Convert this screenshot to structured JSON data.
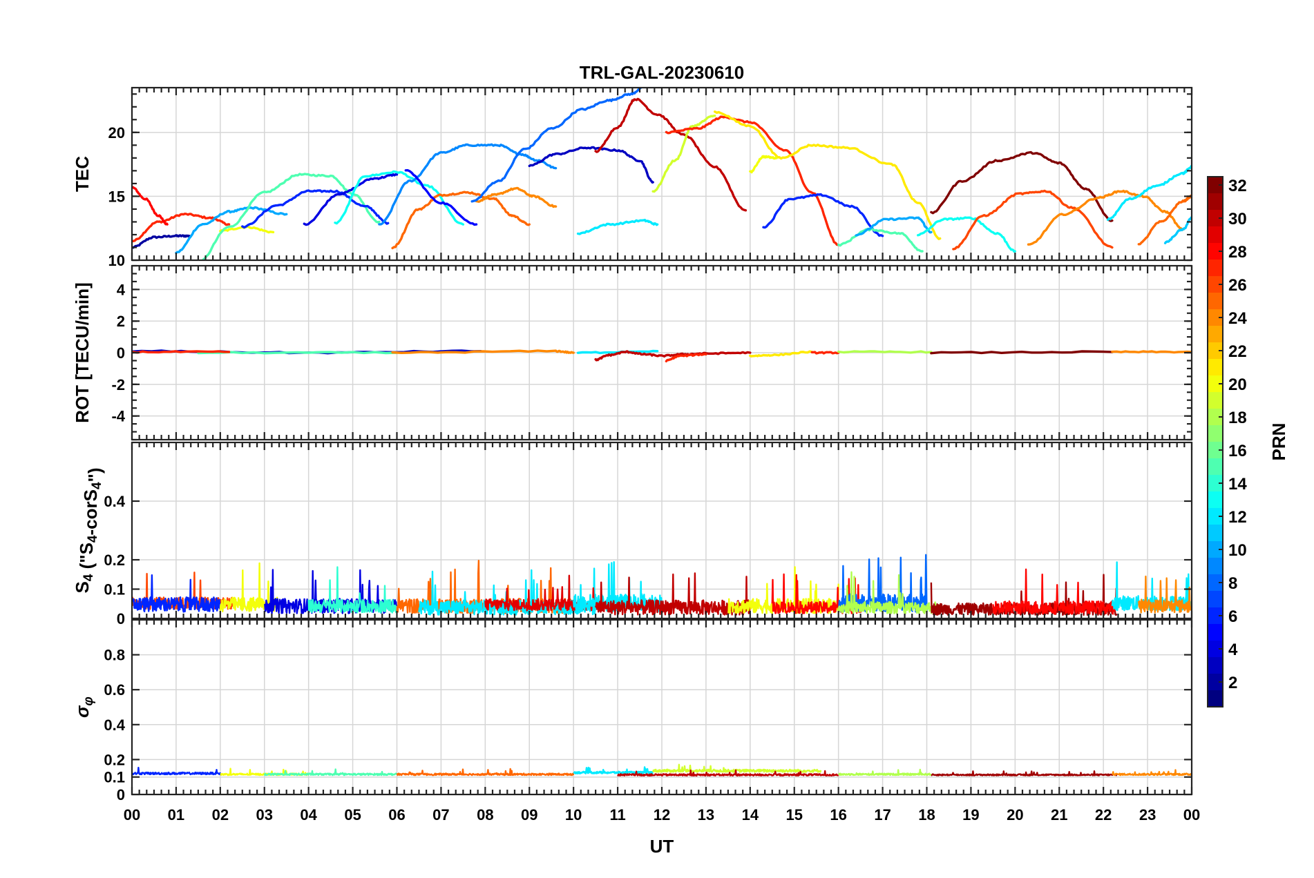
{
  "chart_data": {
    "type": "line",
    "title": "TRL-GAL-20230610",
    "xlabel": "UT",
    "x_range": [
      0,
      24
    ],
    "x_tick_labels": [
      "00",
      "01",
      "02",
      "03",
      "04",
      "05",
      "06",
      "07",
      "08",
      "09",
      "10",
      "11",
      "12",
      "13",
      "14",
      "15",
      "16",
      "17",
      "18",
      "19",
      "20",
      "21",
      "22",
      "23",
      "00"
    ],
    "colorbar": {
      "label": "PRN",
      "range": [
        1,
        32
      ],
      "tick_labels": [
        "2",
        "4",
        "6",
        "8",
        "10",
        "12",
        "14",
        "16",
        "18",
        "20",
        "22",
        "24",
        "26",
        "28",
        "30",
        "32"
      ],
      "colormap": "jet"
    },
    "panels": [
      {
        "id": "tec",
        "ylabel": "TEC",
        "ylim": [
          10,
          23.5
        ],
        "y_ticks": [
          10,
          15,
          20
        ],
        "y_tick_labels": [
          "10",
          "15",
          "20"
        ],
        "series": [
          {
            "prn": 2,
            "x": [
              0.0,
              0.5,
              1.0,
              1.3
            ],
            "y": [
              11.0,
              11.8,
              11.9,
              11.9
            ]
          },
          {
            "prn": 27,
            "x": [
              0.0,
              0.6,
              1.2,
              1.8,
              2.2
            ],
            "y": [
              11.5,
              13.0,
              13.6,
              13.3,
              12.8
            ]
          },
          {
            "prn": 28,
            "x": [
              0.0,
              0.3,
              0.6,
              0.8
            ],
            "y": [
              15.7,
              14.8,
              13.5,
              12.8
            ]
          },
          {
            "prn": 10,
            "x": [
              1.0,
              1.6,
              2.2,
              2.7,
              3.5
            ],
            "y": [
              10.6,
              12.8,
              13.8,
              14.1,
              13.6
            ]
          },
          {
            "prn": 20,
            "x": [
              2.0,
              2.6,
              3.2
            ],
            "y": [
              12.3,
              12.6,
              12.2
            ]
          },
          {
            "prn": 15,
            "x": [
              1.5,
              2.2,
              3.0,
              3.8,
              4.5,
              5.0,
              5.6
            ],
            "y": [
              9.8,
              12.6,
              15.3,
              16.7,
              16.6,
              15.2,
              13.0
            ]
          },
          {
            "prn": 6,
            "x": [
              2.5,
              3.3,
              4.0,
              4.6,
              5.3,
              5.8
            ],
            "y": [
              12.6,
              14.3,
              15.4,
              15.4,
              14.2,
              12.9
            ]
          },
          {
            "prn": 4,
            "x": [
              3.9,
              4.7,
              5.5,
              6.0
            ],
            "y": [
              12.8,
              15.2,
              16.4,
              16.7
            ]
          },
          {
            "prn": 13,
            "x": [
              4.6,
              5.3,
              6.0,
              6.7,
              7.5
            ],
            "y": [
              12.9,
              16.6,
              16.9,
              15.8,
              12.8
            ]
          },
          {
            "prn": 9,
            "x": [
              5.6,
              6.3,
              7.0,
              7.6,
              8.3,
              8.8,
              9.2,
              9.6
            ],
            "y": [
              12.8,
              16.2,
              18.4,
              19.0,
              19.0,
              18.3,
              17.8,
              17.2
            ]
          },
          {
            "prn": 25,
            "x": [
              5.9,
              6.5,
              7.0,
              7.6,
              8.2,
              8.6,
              9.0
            ],
            "y": [
              11.0,
              14.0,
              15.1,
              15.3,
              14.8,
              13.5,
              12.8
            ]
          },
          {
            "prn": 5,
            "x": [
              6.2,
              7.0,
              7.8
            ],
            "y": [
              17.0,
              14.5,
              12.8
            ]
          },
          {
            "prn": 24,
            "x": [
              7.8,
              8.2,
              8.7,
              9.1,
              9.6
            ],
            "y": [
              14.6,
              15.1,
              15.6,
              15.0,
              14.2
            ]
          },
          {
            "prn": 8,
            "x": [
              7.7,
              8.3,
              8.9,
              9.5,
              10.2,
              10.8,
              11.3,
              11.6
            ],
            "y": [
              14.6,
              16.2,
              18.7,
              20.3,
              21.8,
              22.5,
              23.0,
              23.6
            ]
          },
          {
            "prn": 3,
            "x": [
              9.0,
              9.6,
              10.3,
              11.0,
              11.5,
              11.8
            ],
            "y": [
              17.4,
              18.3,
              18.8,
              18.6,
              17.8,
              16.1
            ]
          },
          {
            "prn": 12,
            "x": [
              10.1,
              10.8,
              11.6,
              11.9
            ],
            "y": [
              12.1,
              12.8,
              13.1,
              12.8
            ]
          },
          {
            "prn": 30,
            "x": [
              10.5,
              11.0,
              11.4,
              11.9,
              12.5,
              13.2,
              13.9
            ],
            "y": [
              18.5,
              20.4,
              22.6,
              21.4,
              19.8,
              17.3,
              13.9
            ]
          },
          {
            "prn": 19,
            "x": [
              11.8,
              12.3,
              12.7,
              13.2
            ],
            "y": [
              15.4,
              17.8,
              20.5,
              21.3
            ]
          },
          {
            "prn": 27,
            "x": [
              12.1,
              12.8,
              13.4,
              14.0,
              14.8,
              15.4,
              16.0
            ],
            "y": [
              20.0,
              20.3,
              21.2,
              20.8,
              18.6,
              15.3,
              11.2
            ]
          },
          {
            "prn": 21,
            "x": [
              13.2,
              14.0,
              14.7,
              15.4,
              16.2,
              17.2,
              17.8,
              18.3
            ],
            "y": [
              21.6,
              20.5,
              18.0,
              19.0,
              18.8,
              17.5,
              14.5,
              11.7
            ]
          },
          {
            "prn": 20,
            "x": [
              14.0,
              14.3,
              14.6
            ],
            "y": [
              16.9,
              18.1,
              18.0
            ]
          },
          {
            "prn": 6,
            "x": [
              14.3,
              14.9,
              15.6,
              16.3,
              17.0
            ],
            "y": [
              12.6,
              14.8,
              15.1,
              14.2,
              11.9
            ]
          },
          {
            "prn": 15,
            "x": [
              16.0,
              16.7,
              17.4,
              17.9
            ],
            "y": [
              11.2,
              12.4,
              12.1,
              10.7
            ]
          },
          {
            "prn": 10,
            "x": [
              16.4,
              17.1,
              17.8,
              18.1
            ],
            "y": [
              12.0,
              13.2,
              13.3,
              12.2
            ]
          },
          {
            "prn": 13,
            "x": [
              17.8,
              18.4,
              19.0,
              19.6,
              20.0
            ],
            "y": [
              12.0,
              13.2,
              13.3,
              12.1,
              10.7
            ]
          },
          {
            "prn": 32,
            "x": [
              18.1,
              18.8,
              19.6,
              20.4,
              21.0,
              21.6,
              22.2
            ],
            "y": [
              13.7,
              16.2,
              17.8,
              18.4,
              17.6,
              15.6,
              13.1
            ]
          },
          {
            "prn": 26,
            "x": [
              18.6,
              19.3,
              20.1,
              20.7,
              21.3,
              22.2
            ],
            "y": [
              10.9,
              13.5,
              15.2,
              15.4,
              14.1,
              11.0
            ]
          },
          {
            "prn": 24,
            "x": [
              20.3,
              21.1,
              21.9,
              22.4,
              22.9,
              23.4,
              23.8
            ],
            "y": [
              11.2,
              13.6,
              14.9,
              15.4,
              15.0,
              13.8,
              12.4
            ]
          },
          {
            "prn": 12,
            "x": [
              22.1,
              22.6,
              23.2,
              23.8,
              24.0
            ],
            "y": [
              13.2,
              14.8,
              15.8,
              16.8,
              17.3
            ]
          },
          {
            "prn": 25,
            "x": [
              22.8,
              23.3,
              23.8,
              24.0
            ],
            "y": [
              11.3,
              13.0,
              14.6,
              15.0
            ]
          },
          {
            "prn": 11,
            "x": [
              23.4,
              23.8,
              24.0
            ],
            "y": [
              11.4,
              12.4,
              13.3
            ]
          }
        ]
      },
      {
        "id": "rot",
        "ylabel": "ROT [TECU/min]",
        "ylim": [
          -5.5,
          5.5
        ],
        "y_ticks": [
          -4,
          -2,
          0,
          2,
          4
        ],
        "y_tick_labels": [
          "-4",
          "-2",
          "0",
          "2",
          "4"
        ],
        "series": [
          {
            "prn": 3,
            "x": [
              0.0,
              4.0,
              7.9
            ],
            "y": [
              0.1,
              0.0,
              0.1
            ]
          },
          {
            "prn": 15,
            "x": [
              1.5,
              6.0
            ],
            "y": [
              0.0,
              0.0
            ]
          },
          {
            "prn": 27,
            "x": [
              0.0,
              2.2
            ],
            "y": [
              0.05,
              0.05
            ]
          },
          {
            "prn": 24,
            "x": [
              5.9,
              9.6,
              10.0
            ],
            "y": [
              0.0,
              0.1,
              0.0
            ]
          },
          {
            "prn": 12,
            "x": [
              10.1,
              11.9
            ],
            "y": [
              0.0,
              0.1
            ]
          },
          {
            "prn": 30,
            "x": [
              10.5,
              10.8,
              11.2,
              11.6,
              12.0,
              12.5,
              13.0,
              14.0
            ],
            "y": [
              -0.45,
              -0.15,
              0.05,
              -0.1,
              -0.2,
              -0.1,
              -0.05,
              0.0
            ]
          },
          {
            "prn": 27,
            "x": [
              12.1,
              12.4,
              13.0
            ],
            "y": [
              -0.5,
              -0.2,
              -0.1
            ]
          },
          {
            "prn": 21,
            "x": [
              14.0,
              14.5,
              15.4
            ],
            "y": [
              -0.2,
              -0.15,
              0.05
            ]
          },
          {
            "prn": 27,
            "x": [
              15.4,
              16.0
            ],
            "y": [
              0.0,
              0.0
            ]
          },
          {
            "prn": 18,
            "x": [
              16.0,
              18.1
            ],
            "y": [
              0.05,
              0.05
            ]
          },
          {
            "prn": 32,
            "x": [
              18.1,
              22.2
            ],
            "y": [
              0.0,
              0.05
            ]
          },
          {
            "prn": 24,
            "x": [
              22.2,
              24.0
            ],
            "y": [
              0.05,
              0.05
            ]
          }
        ]
      },
      {
        "id": "s4",
        "ylabel": "S4 (\"S4-corS4\")",
        "ylabel_parts": {
          "s1": "S",
          "sub1": "4",
          "mid": " (\"S",
          "sub2": "4",
          "s3": "-corS",
          "sub3": "4",
          "end": "\")"
        },
        "ylim": [
          0,
          0.6
        ],
        "y_ticks": [
          0,
          0.1,
          0.2,
          0.4
        ],
        "y_tick_labels": [
          "0",
          "0.1",
          "0.2",
          "0.4"
        ],
        "noise_bands": [
          {
            "prn": 26,
            "x0": 0.0,
            "x1": 2.3,
            "base": 0.05,
            "amp": 0.04
          },
          {
            "prn": 6,
            "x0": 0.0,
            "x1": 2.0,
            "base": 0.045,
            "amp": 0.05
          },
          {
            "prn": 20,
            "x0": 2.0,
            "x1": 3.3,
            "base": 0.045,
            "amp": 0.05
          },
          {
            "prn": 4,
            "x0": 3.0,
            "x1": 6.0,
            "base": 0.04,
            "amp": 0.05
          },
          {
            "prn": 14,
            "x0": 4.0,
            "x1": 6.0,
            "base": 0.04,
            "amp": 0.045
          },
          {
            "prn": 25,
            "x0": 6.0,
            "x1": 10.0,
            "base": 0.04,
            "amp": 0.05
          },
          {
            "prn": 12,
            "x0": 6.5,
            "x1": 10.5,
            "base": 0.035,
            "amp": 0.05
          },
          {
            "prn": 29,
            "x0": 8.0,
            "x1": 10.5,
            "base": 0.045,
            "amp": 0.04
          },
          {
            "prn": 12,
            "x0": 10.0,
            "x1": 12.0,
            "base": 0.05,
            "amp": 0.06
          },
          {
            "prn": 30,
            "x0": 10.5,
            "x1": 14.0,
            "base": 0.035,
            "amp": 0.05
          },
          {
            "prn": 20,
            "x0": 13.5,
            "x1": 16.0,
            "base": 0.04,
            "amp": 0.05
          },
          {
            "prn": 28,
            "x0": 14.5,
            "x1": 16.5,
            "base": 0.035,
            "amp": 0.04
          },
          {
            "prn": 8,
            "x0": 16.0,
            "x1": 18.0,
            "base": 0.05,
            "amp": 0.06
          },
          {
            "prn": 18,
            "x0": 16.0,
            "x1": 18.2,
            "base": 0.035,
            "amp": 0.04
          },
          {
            "prn": 31,
            "x0": 18.1,
            "x1": 22.3,
            "base": 0.03,
            "amp": 0.04
          },
          {
            "prn": 28,
            "x0": 19.5,
            "x1": 22.3,
            "base": 0.035,
            "amp": 0.045
          },
          {
            "prn": 12,
            "x0": 22.2,
            "x1": 24.0,
            "base": 0.05,
            "amp": 0.05
          },
          {
            "prn": 24,
            "x0": 22.8,
            "x1": 24.0,
            "base": 0.04,
            "amp": 0.045
          }
        ]
      },
      {
        "id": "sigma_phi",
        "ylabel": "σφ",
        "ylabel_parts": {
          "base": "σ",
          "sub": "φ"
        },
        "ylim": [
          0,
          1.0
        ],
        "y_ticks": [
          0,
          0.1,
          0.2,
          0.4,
          0.6,
          0.8
        ],
        "y_tick_labels": [
          "0",
          "0.1",
          "0.2",
          "0.4",
          "0.6",
          "0.8"
        ],
        "noise_bands": [
          {
            "prn": 6,
            "x0": 0.0,
            "x1": 2.0,
            "base": 0.12,
            "amp": 0.012
          },
          {
            "prn": 20,
            "x0": 2.0,
            "x1": 4.0,
            "base": 0.115,
            "amp": 0.01
          },
          {
            "prn": 15,
            "x0": 3.0,
            "x1": 6.0,
            "base": 0.115,
            "amp": 0.01
          },
          {
            "prn": 25,
            "x0": 6.0,
            "x1": 10.0,
            "base": 0.115,
            "amp": 0.01
          },
          {
            "prn": 12,
            "x0": 10.0,
            "x1": 11.8,
            "base": 0.125,
            "amp": 0.012
          },
          {
            "prn": 19,
            "x0": 11.8,
            "x1": 15.6,
            "base": 0.135,
            "amp": 0.015
          },
          {
            "prn": 30,
            "x0": 11.0,
            "x1": 16.0,
            "base": 0.112,
            "amp": 0.01
          },
          {
            "prn": 18,
            "x0": 16.0,
            "x1": 18.1,
            "base": 0.115,
            "amp": 0.01
          },
          {
            "prn": 31,
            "x0": 18.1,
            "x1": 22.3,
            "base": 0.112,
            "amp": 0.008
          },
          {
            "prn": 24,
            "x0": 22.2,
            "x1": 24.0,
            "base": 0.115,
            "amp": 0.01
          }
        ]
      }
    ]
  }
}
